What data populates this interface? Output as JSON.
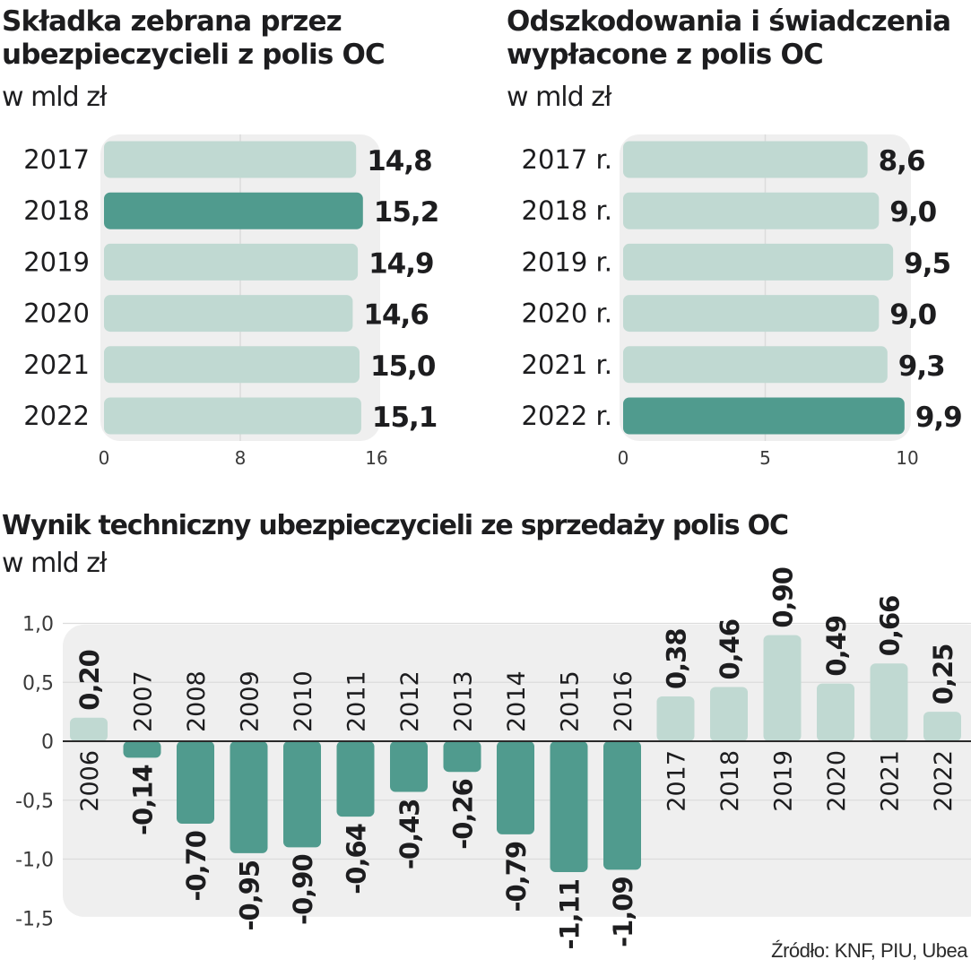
{
  "colors": {
    "bar_light": "#c0d9d2",
    "bar_dark": "#509b8e",
    "panel_bg": "#efefef",
    "gridline": "#dcdcdc",
    "zero_line": "#2a2a2a",
    "text": "#1d1d1f"
  },
  "source": "Źródło: KNF, PIU, Ubea",
  "chart_data": [
    {
      "type": "bar",
      "orientation": "horizontal",
      "title": "Składka zebrana przez ubezpieczycieli z polis OC",
      "title_lines": [
        "Składka zebrana przez",
        "ubezpieczycieli z polis OC"
      ],
      "subtitle": "w mld zł",
      "categories": [
        "2017",
        "2018",
        "2019",
        "2020",
        "2021",
        "2022"
      ],
      "values": [
        14.8,
        15.2,
        14.9,
        14.6,
        15.0,
        15.1
      ],
      "value_labels": [
        "14,8",
        "15,2",
        "14,9",
        "14,6",
        "15,0",
        "15,1"
      ],
      "highlight": [
        "2018"
      ],
      "xlim": [
        0,
        16
      ],
      "xticks": [
        0,
        8,
        16
      ],
      "xtick_labels": [
        "0",
        "8",
        "16"
      ],
      "grid": true,
      "xlabel": "",
      "ylabel": ""
    },
    {
      "type": "bar",
      "orientation": "horizontal",
      "title": "Odszkodowania i świadczenia wypłacone z polis OC",
      "title_lines": [
        "Odszkodowania i świadczenia",
        "wypłacone z polis OC"
      ],
      "subtitle": "w mld zł",
      "categories": [
        "2017 r.",
        "2018 r.",
        "2019 r.",
        "2020 r.",
        "2021 r.",
        "2022 r."
      ],
      "values": [
        8.6,
        9.0,
        9.5,
        9.0,
        9.3,
        9.9
      ],
      "value_labels": [
        "8,6",
        "9,0",
        "9,5",
        "9,0",
        "9,3",
        "9,9"
      ],
      "highlight": [
        "2022 r."
      ],
      "xlim": [
        0,
        10
      ],
      "xticks": [
        0,
        5,
        10
      ],
      "xtick_labels": [
        "0",
        "5",
        "10"
      ],
      "grid": true,
      "xlabel": "",
      "ylabel": ""
    },
    {
      "type": "bar",
      "orientation": "vertical",
      "title": "Wynik techniczny ubezpieczycieli ze sprzedaży polis OC",
      "subtitle": "w mld zł",
      "categories": [
        "2006",
        "2007",
        "2008",
        "2009",
        "2010",
        "2011",
        "2012",
        "2013",
        "2014",
        "2015",
        "2016",
        "2017",
        "2018",
        "2019",
        "2020",
        "2021",
        "2022"
      ],
      "values": [
        0.2,
        -0.14,
        -0.7,
        -0.95,
        -0.9,
        -0.64,
        -0.43,
        -0.26,
        -0.79,
        -1.11,
        -1.09,
        0.38,
        0.46,
        0.9,
        0.49,
        0.66,
        0.25
      ],
      "value_labels": [
        "0,20",
        "-0,14",
        "-0,70",
        "-0,95",
        "-0,90",
        "-0,64",
        "-0,43",
        "-0,26",
        "-0,79",
        "-1,11",
        "-1,09",
        "0,38",
        "0,46",
        "0,90",
        "0,49",
        "0,66",
        "0,25"
      ],
      "positive_color": "bar_light",
      "negative_color": "bar_dark",
      "ylim": [
        -1.5,
        1.0
      ],
      "yticks": [
        1.0,
        0.5,
        0,
        -0.5,
        -1.0,
        -1.5
      ],
      "ytick_labels": [
        "1,0",
        "0,5",
        "0",
        "-0,5",
        "-1,0",
        "-1,5"
      ],
      "grid": true,
      "xlabel": "",
      "ylabel": ""
    }
  ]
}
